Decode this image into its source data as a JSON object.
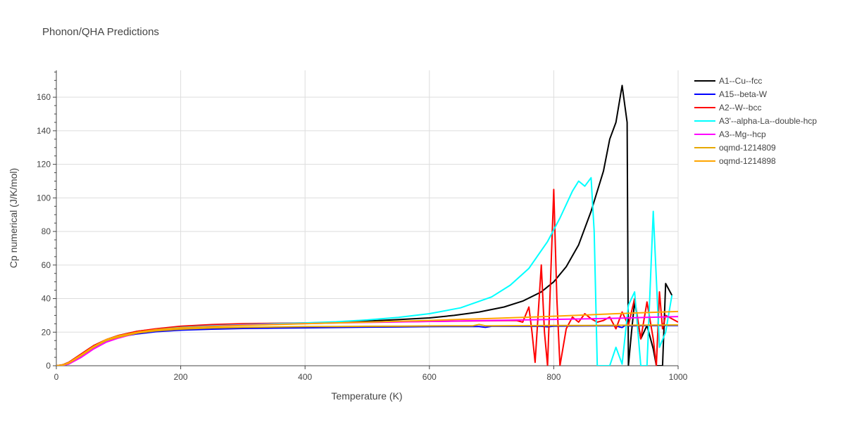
{
  "chart_data": {
    "type": "line",
    "title": "Phonon/QHA Predictions",
    "xlabel": "Temperature (K)",
    "ylabel": "Cp numerical (J/K/mol)",
    "xlim": [
      0,
      1000
    ],
    "ylim": [
      0,
      176
    ],
    "xticks": [
      0,
      200,
      400,
      600,
      800,
      1000
    ],
    "yticks": [
      0,
      20,
      40,
      60,
      80,
      100,
      120,
      140,
      160
    ],
    "grid": true,
    "legend_position": "top-right",
    "series": [
      {
        "name": "A1--Cu--fcc",
        "color": "#000000",
        "x": [
          0,
          10,
          20,
          40,
          60,
          80,
          100,
          130,
          160,
          200,
          250,
          300,
          350,
          400,
          450,
          500,
          550,
          600,
          640,
          680,
          720,
          750,
          780,
          800,
          820,
          840,
          860,
          880,
          890,
          900,
          910,
          918,
          920,
          925,
          930,
          940,
          950,
          960,
          965,
          970,
          975,
          980,
          990
        ],
        "y": [
          0,
          0.5,
          2,
          7,
          12,
          15.5,
          18,
          20.5,
          21.8,
          23,
          24,
          24.6,
          25,
          25.4,
          26,
          26.6,
          27.5,
          28.5,
          30,
          32,
          35,
          38.5,
          44,
          50,
          59,
          72,
          92,
          116,
          135,
          145,
          167,
          145,
          0,
          20,
          38,
          16,
          24,
          10,
          0,
          0,
          0,
          49,
          42
        ]
      },
      {
        "name": "A15--beta-W",
        "color": "#0000ff",
        "x": [
          0,
          10,
          20,
          40,
          60,
          80,
          100,
          130,
          160,
          200,
          250,
          300,
          350,
          400,
          450,
          500,
          550,
          600,
          650,
          680,
          690,
          700,
          750,
          780,
          790,
          800,
          850,
          900,
          905,
          910,
          915,
          920,
          950,
          1000
        ],
        "y": [
          0,
          0.3,
          1.5,
          6,
          11,
          15,
          17,
          19,
          20.3,
          21.2,
          21.8,
          22.2,
          22.4,
          22.6,
          22.8,
          23,
          23.1,
          23.3,
          23.4,
          23.4,
          22.9,
          23.5,
          23.5,
          23.5,
          23.2,
          23.6,
          23.7,
          23.8,
          23.2,
          22.8,
          24,
          23.8,
          23.9,
          24
        ]
      },
      {
        "name": "A2--W--bcc",
        "color": "#ff0000",
        "x": [
          0,
          10,
          20,
          40,
          60,
          80,
          100,
          130,
          160,
          200,
          250,
          300,
          350,
          400,
          450,
          500,
          550,
          600,
          650,
          700,
          740,
          750,
          760,
          765,
          770,
          780,
          785,
          790,
          800,
          805,
          810,
          820,
          830,
          840,
          850,
          860,
          870,
          880,
          890,
          900,
          910,
          920,
          930,
          940,
          950,
          960,
          965,
          970,
          975,
          980,
          1000
        ],
        "y": [
          0,
          0.5,
          2,
          7,
          12,
          15.5,
          18,
          20.5,
          22,
          23.5,
          24.5,
          25,
          25.3,
          25.5,
          25.8,
          26,
          26.2,
          26.4,
          26.6,
          26.8,
          27,
          26,
          35,
          20,
          2,
          60,
          20,
          0,
          105,
          40,
          0,
          22,
          29,
          26,
          31,
          28,
          26,
          27,
          29,
          22,
          32,
          24,
          40,
          16,
          38,
          16,
          0,
          44,
          22,
          30,
          26
        ]
      },
      {
        "name": "A3'--alpha-La--double-hcp",
        "color": "#00ffff",
        "x": [
          0,
          10,
          20,
          40,
          60,
          80,
          100,
          130,
          160,
          200,
          250,
          300,
          350,
          400,
          450,
          500,
          550,
          600,
          650,
          700,
          730,
          760,
          790,
          810,
          830,
          840,
          850,
          860,
          865,
          870,
          875,
          880,
          890,
          900,
          910,
          920,
          930,
          940,
          950,
          960,
          970,
          980,
          990
        ],
        "y": [
          0,
          0.2,
          1,
          5.5,
          10.5,
          14.5,
          17,
          19.5,
          21.5,
          22.8,
          23.8,
          24.4,
          25,
          25.5,
          26.2,
          27.3,
          28.8,
          31,
          34.5,
          41,
          48,
          58,
          74,
          88,
          104,
          110,
          107,
          112,
          80,
          0,
          0,
          0,
          0,
          11,
          1,
          36,
          44,
          0,
          0,
          92,
          11,
          20,
          42
        ]
      },
      {
        "name": "A3--Mg--hcp",
        "color": "#ff00ff",
        "x": [
          0,
          10,
          20,
          40,
          60,
          80,
          100,
          130,
          160,
          200,
          250,
          300,
          350,
          400,
          450,
          500,
          550,
          600,
          650,
          700,
          750,
          800,
          850,
          900,
          950,
          1000
        ],
        "y": [
          0,
          0.2,
          1,
          5,
          10,
          14,
          16.5,
          19.5,
          21,
          22.5,
          23.5,
          24.2,
          24.7,
          25.1,
          25.5,
          25.8,
          26.1,
          26.4,
          26.7,
          27,
          27.3,
          27.6,
          27.9,
          28.3,
          28.8,
          29.3
        ]
      },
      {
        "name": "oqmd-1214809",
        "color": "#e6a800",
        "x": [
          0,
          10,
          20,
          40,
          60,
          80,
          100,
          130,
          160,
          200,
          250,
          300,
          350,
          400,
          450,
          500,
          550,
          600,
          650,
          670,
          680,
          690,
          700,
          750,
          800,
          850,
          900,
          950,
          1000
        ],
        "y": [
          0,
          0.3,
          1.5,
          6,
          11,
          15,
          17,
          19.5,
          20.8,
          21.8,
          22.5,
          22.9,
          23.1,
          23.3,
          23.4,
          23.5,
          23.6,
          23.7,
          23.8,
          23.8,
          24.6,
          23.8,
          23.8,
          23.9,
          24,
          24,
          24.1,
          24.2,
          24.3
        ]
      },
      {
        "name": "oqmd-1214898",
        "color": "#ffa500",
        "x": [
          0,
          10,
          20,
          40,
          60,
          80,
          100,
          130,
          160,
          200,
          250,
          300,
          350,
          400,
          450,
          500,
          550,
          600,
          650,
          700,
          750,
          800,
          850,
          900,
          950,
          1000
        ],
        "y": [
          0,
          0.4,
          1.8,
          6.5,
          11.5,
          15.5,
          17.8,
          20,
          21.5,
          22.6,
          23.4,
          24,
          24.5,
          25,
          25.5,
          26,
          26.5,
          27,
          27.6,
          28.2,
          28.8,
          29.5,
          30.2,
          31,
          31.7,
          32.3
        ]
      }
    ]
  }
}
